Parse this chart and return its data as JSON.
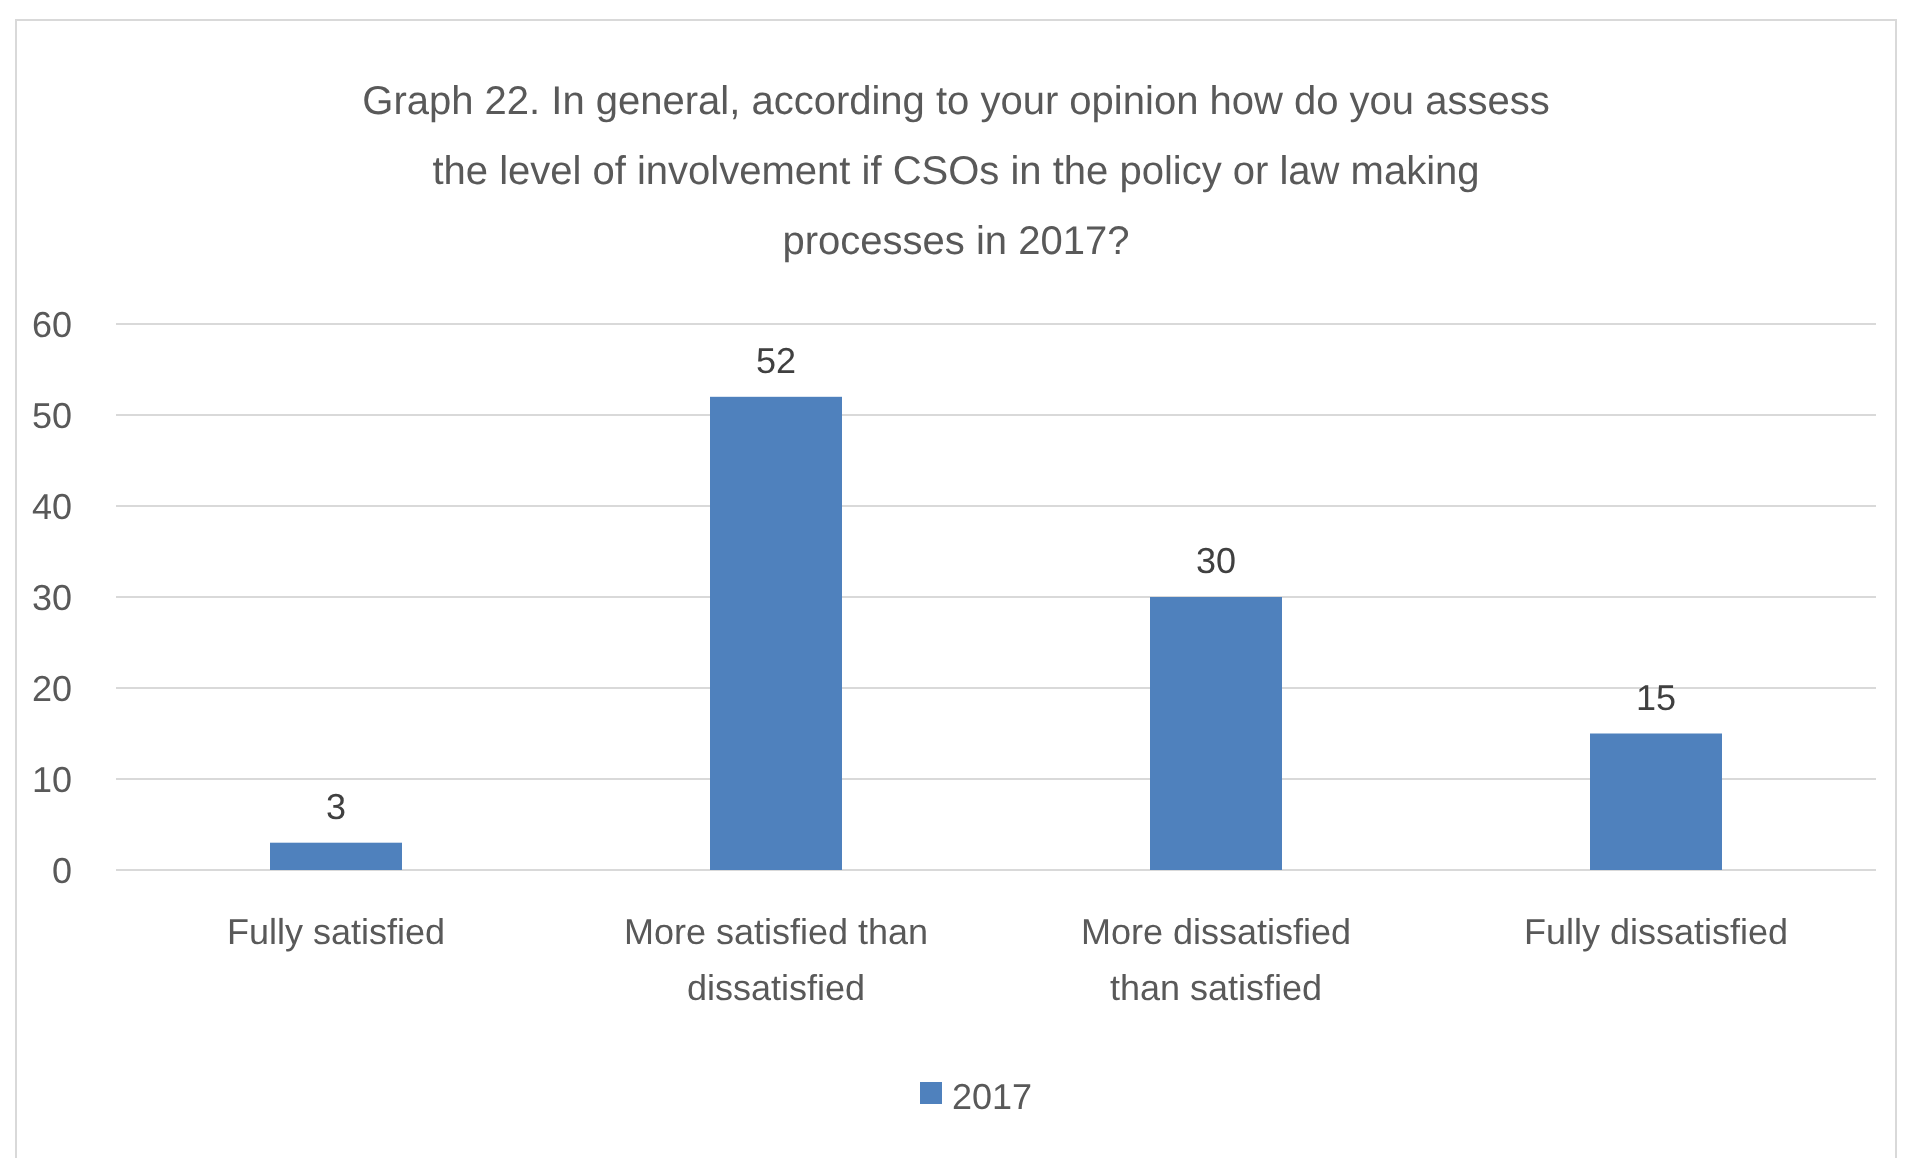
{
  "chart_data": {
    "type": "bar",
    "title": "Graph 22. In general, according to your opinion how do you assess the level of involvement if CSOs in the policy or law making processes in 2017?",
    "categories": [
      "Fully satisfied",
      "More satisfied than dissatisfied",
      "More dissatisfied than satisfied",
      "Fully dissatisfied"
    ],
    "series": [
      {
        "name": "2017",
        "color": "#4f81bd",
        "values": [
          3,
          52,
          30,
          15
        ]
      }
    ],
    "ylim": [
      0,
      60
    ],
    "yticks": [
      0,
      10,
      20,
      30,
      40,
      50,
      60
    ],
    "grid": "y",
    "legend": "bottom",
    "data_labels": true
  }
}
